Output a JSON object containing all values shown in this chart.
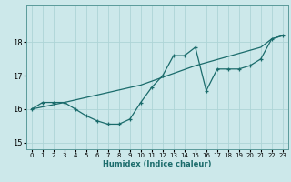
{
  "xlabel": "Humidex (Indice chaleur)",
  "ylabel": "",
  "bg_color": "#cce8ea",
  "line_color": "#1a6b6b",
  "grid_color": "#aed4d6",
  "xlim": [
    -0.5,
    23.5
  ],
  "ylim": [
    14.8,
    19.1
  ],
  "yticks": [
    15,
    16,
    17,
    18
  ],
  "xticks": [
    0,
    1,
    2,
    3,
    4,
    5,
    6,
    7,
    8,
    9,
    10,
    11,
    12,
    13,
    14,
    15,
    16,
    17,
    18,
    19,
    20,
    21,
    22,
    23
  ],
  "zigzag_x": [
    0,
    1,
    2,
    3,
    4,
    5,
    6,
    7,
    8,
    9,
    10,
    11,
    12,
    13,
    14,
    15,
    16,
    17,
    18,
    19,
    20,
    21,
    22,
    23
  ],
  "zigzag_y": [
    16.0,
    16.2,
    16.2,
    16.2,
    16.0,
    15.8,
    15.65,
    15.55,
    15.55,
    15.7,
    16.2,
    16.65,
    17.0,
    17.6,
    17.6,
    17.85,
    16.55,
    17.2,
    17.2,
    17.2,
    17.3,
    17.5,
    18.1,
    18.2
  ],
  "smooth_x": [
    0,
    3,
    10,
    15,
    21,
    22,
    23
  ],
  "smooth_y": [
    16.0,
    16.2,
    16.72,
    17.3,
    17.85,
    18.1,
    18.2
  ]
}
